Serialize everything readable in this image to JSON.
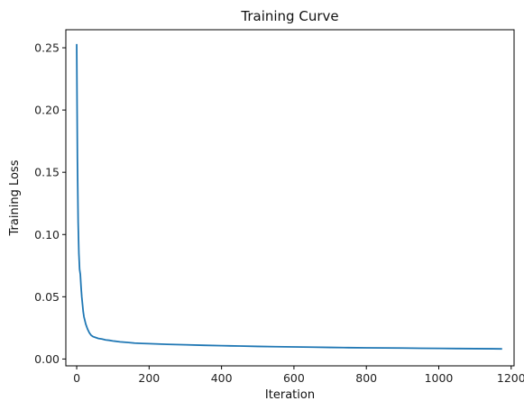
{
  "chart_data": {
    "type": "line",
    "title": "Training Curve",
    "xlabel": "Iteration",
    "ylabel": "Training Loss",
    "xlim": [
      -30,
      1208
    ],
    "ylim": [
      -0.0055,
      0.2645
    ],
    "xticks": [
      0,
      200,
      400,
      600,
      800,
      1000,
      1200
    ],
    "xtick_labels": [
      "0",
      "200",
      "400",
      "600",
      "800",
      "1000",
      "1200"
    ],
    "yticks": [
      0.0,
      0.05,
      0.1,
      0.15,
      0.2,
      0.25
    ],
    "ytick_labels": [
      "0.00",
      "0.05",
      "0.10",
      "0.15",
      "0.20",
      "0.25"
    ],
    "grid": false,
    "series": [
      {
        "color": "#1f77b4",
        "x": [
          0,
          2,
          4,
          6,
          8,
          10,
          12,
          14,
          16,
          18,
          20,
          25,
          30,
          35,
          40,
          45,
          50,
          60,
          70,
          80,
          90,
          100,
          120,
          140,
          160,
          180,
          200,
          250,
          300,
          350,
          400,
          450,
          500,
          550,
          600,
          650,
          700,
          750,
          800,
          850,
          900,
          950,
          1000,
          1050,
          1100,
          1150,
          1175
        ],
        "y": [
          0.253,
          0.16,
          0.11,
          0.085,
          0.072,
          0.068,
          0.058,
          0.05,
          0.044,
          0.038,
          0.034,
          0.028,
          0.024,
          0.021,
          0.019,
          0.018,
          0.0175,
          0.0165,
          0.016,
          0.0153,
          0.015,
          0.0145,
          0.0138,
          0.0133,
          0.0128,
          0.0125,
          0.0123,
          0.0118,
          0.0114,
          0.011,
          0.0107,
          0.0104,
          0.0101,
          0.0099,
          0.0097,
          0.0095,
          0.0093,
          0.0091,
          0.009,
          0.0089,
          0.0088,
          0.0086,
          0.0085,
          0.0084,
          0.0083,
          0.0082,
          0.0081
        ]
      }
    ]
  }
}
